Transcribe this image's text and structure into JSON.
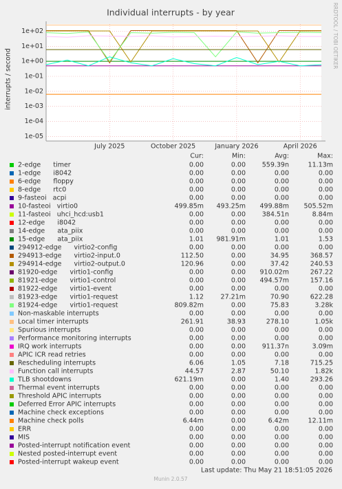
{
  "chart_data": {
    "type": "line",
    "title": "Individual interrupts - by year",
    "y_label": "interrupts / second",
    "log_scale": true,
    "grid": true,
    "xlim": [
      "2025-04",
      "2026-05"
    ],
    "xticks": [
      {
        "value": "2025-07",
        "label": "July 2025"
      },
      {
        "value": "2025-10",
        "label": "October 2025"
      },
      {
        "value": "2026-01",
        "label": "January 2026"
      },
      {
        "value": "2026-04",
        "label": "April 2026"
      }
    ],
    "ylim": [
      5e-06,
      300
    ],
    "yticks": [
      {
        "value": 100,
        "label": "1e+02"
      },
      {
        "value": 10,
        "label": "1e+01"
      },
      {
        "value": 1,
        "label": "1e+00"
      },
      {
        "value": 0.1,
        "label": "1e-01"
      },
      {
        "value": 0.01,
        "label": "1e-02"
      },
      {
        "value": 0.001,
        "label": "1e-03"
      },
      {
        "value": 0.0001,
        "label": "1e-04"
      },
      {
        "value": 1e-05,
        "label": "1e-05"
      }
    ],
    "x": [
      "2025-04",
      "2025-05",
      "2025-06",
      "2025-07",
      "2025-08",
      "2025-09",
      "2025-10",
      "2025-11",
      "2025-12",
      "2026-01",
      "2026-02",
      "2026-03",
      "2026-04",
      "2026-05"
    ],
    "column_headers": [
      "Cur:",
      "Min:",
      "Avg:",
      "Max:"
    ],
    "series": [
      {
        "name": "2-edge      timer",
        "color": "#00cc00",
        "stats": [
          "0.00",
          "0.00",
          "559.39n",
          "11.13m"
        ]
      },
      {
        "name": "1-edge      i8042",
        "color": "#0066b3",
        "stats": [
          "0.00",
          "0.00",
          "0.00",
          "0.00"
        ]
      },
      {
        "name": "6-edge      floppy",
        "color": "#ff8000",
        "stats": [
          "0.00",
          "0.00",
          "0.00",
          "0.00"
        ]
      },
      {
        "name": "8-edge      rtc0",
        "color": "#ffcc00",
        "stats": [
          "0.00",
          "0.00",
          "0.00",
          "0.00"
        ]
      },
      {
        "name": "9-fasteoi   acpi",
        "color": "#330099",
        "stats": [
          "0.00",
          "0.00",
          "0.00",
          "0.00"
        ]
      },
      {
        "name": "10-fasteoi   virtio0",
        "color": "#990099",
        "stats": [
          "499.85m",
          "493.25m",
          "499.88m",
          "505.52m"
        ],
        "values": [
          0.5,
          0.5,
          0.5,
          0.5,
          0.5,
          0.5,
          0.5,
          0.5,
          0.5,
          0.5,
          0.5,
          0.5,
          0.5,
          0.5
        ]
      },
      {
        "name": "11-fasteoi   uhci_hcd:usb1",
        "color": "#ccff00",
        "stats": [
          "0.00",
          "0.00",
          "384.51n",
          "8.84m"
        ]
      },
      {
        "name": "12-edge      i8042",
        "color": "#ff0000",
        "stats": [
          "0.00",
          "0.00",
          "0.00",
          "0.00"
        ]
      },
      {
        "name": "14-edge      ata_piix",
        "color": "#808080",
        "stats": [
          "0.00",
          "0.00",
          "0.00",
          "0.00"
        ]
      },
      {
        "name": "15-edge      ata_piix",
        "color": "#008f00",
        "stats": [
          "1.01",
          "981.91m",
          "1.01",
          "1.53"
        ],
        "values": [
          1.0,
          1.0,
          1.0,
          1.0,
          1.0,
          1.0,
          1.0,
          1.0,
          1.0,
          1.0,
          1.0,
          1.0,
          1.0,
          1.0
        ]
      },
      {
        "name": "294912-edge      virtio2-config",
        "color": "#00487d",
        "stats": [
          "0.00",
          "0.00",
          "0.00",
          "0.00"
        ]
      },
      {
        "name": "294913-edge      virtio2-input.0",
        "color": "#b35a00",
        "stats": [
          "112.50",
          "0.00",
          "34.95",
          "368.57"
        ],
        "values": [
          110,
          110,
          110,
          0.8,
          110,
          110,
          110,
          110,
          110,
          110,
          0.8,
          110,
          110,
          110
        ]
      },
      {
        "name": "294914-edge      virtio2-output.0",
        "color": "#b38f00",
        "stats": [
          "120.96",
          "0.00",
          "37.42",
          "240.53"
        ],
        "values": [
          105,
          105,
          105,
          105,
          0.9,
          105,
          105,
          105,
          105,
          105,
          105,
          0.9,
          105,
          105
        ]
      },
      {
        "name": "81920-edge      virtio1-config",
        "color": "#6b006b",
        "stats": [
          "0.00",
          "0.00",
          "910.02m",
          "267.22"
        ]
      },
      {
        "name": "81921-edge      virtio1-control",
        "color": "#8fb300",
        "stats": [
          "0.00",
          "0.00",
          "494.57m",
          "157.16"
        ]
      },
      {
        "name": "81922-edge      virtio1-event",
        "color": "#b30000",
        "stats": [
          "0.00",
          "0.00",
          "0.00",
          "0.00"
        ]
      },
      {
        "name": "81923-edge      virtio1-request",
        "color": "#bebebe",
        "stats": [
          "1.12",
          "27.21m",
          "70.90",
          "622.28"
        ]
      },
      {
        "name": "81924-edge      virtio1-request",
        "color": "#80ff80",
        "stats": [
          "809.82m",
          "0.00",
          "75.83",
          "3.28k"
        ],
        "values": [
          80,
          70,
          90,
          1,
          80,
          75,
          85,
          80,
          2,
          90,
          75,
          80,
          85,
          80
        ]
      },
      {
        "name": "Non-maskable interrupts",
        "color": "#80c9ff",
        "stats": [
          "0.00",
          "0.00",
          "0.00",
          "0.00"
        ]
      },
      {
        "name": "Local timer interrupts",
        "color": "#ffc080",
        "stats": [
          "261.91",
          "38.93",
          "278.10",
          "1.05k"
        ],
        "values": [
          260,
          260,
          260,
          260,
          260,
          260,
          260,
          260,
          260,
          260,
          260,
          260,
          260,
          260
        ]
      },
      {
        "name": "Spurious interrupts",
        "color": "#ffe680",
        "stats": [
          "0.00",
          "0.00",
          "0.00",
          "0.00"
        ]
      },
      {
        "name": "Performance monitoring interrupts",
        "color": "#aa80ff",
        "stats": [
          "0.00",
          "0.00",
          "0.00",
          "0.00"
        ]
      },
      {
        "name": "IRQ work interrupts",
        "color": "#ee00cc",
        "stats": [
          "0.00",
          "0.00",
          "911.37n",
          "3.09m"
        ]
      },
      {
        "name": "APIC ICR read retries",
        "color": "#ff8080",
        "stats": [
          "0.00",
          "0.00",
          "0.00",
          "0.00"
        ]
      },
      {
        "name": "Rescheduling interrupts",
        "color": "#666600",
        "stats": [
          "6.06",
          "1.05",
          "7.18",
          "715.25"
        ],
        "values": [
          6,
          6,
          6,
          6,
          6,
          6,
          6,
          6,
          6,
          6,
          6,
          6,
          6,
          6
        ]
      },
      {
        "name": "Function call interrupts",
        "color": "#ffbfff",
        "stats": [
          "44.57",
          "2.87",
          "50.10",
          "1.82k"
        ],
        "values": [
          45,
          40,
          50,
          48,
          45,
          50,
          42,
          45,
          47,
          44,
          46,
          50,
          45,
          45
        ]
      },
      {
        "name": "TLB shootdowns",
        "color": "#00ffcc",
        "stats": [
          "621.19m",
          "0.00",
          "1.40",
          "293.26"
        ],
        "values": [
          0.6,
          1.2,
          0.5,
          2,
          0.8,
          0.5,
          1.5,
          0.7,
          0.5,
          1.8,
          0.6,
          1,
          0.5,
          0.6
        ]
      },
      {
        "name": "Thermal event interrupts",
        "color": "#cc6699",
        "stats": [
          "0.00",
          "0.00",
          "0.00",
          "0.00"
        ]
      },
      {
        "name": "Threshold APIC interrupts",
        "color": "#999900",
        "stats": [
          "0.00",
          "0.00",
          "0.00",
          "0.00"
        ]
      },
      {
        "name": "Deferred Error APIC interrupts",
        "color": "#00cc00",
        "stats": [
          "0.00",
          "0.00",
          "0.00",
          "0.00"
        ]
      },
      {
        "name": "Machine check exceptions",
        "color": "#0066b3",
        "stats": [
          "0.00",
          "0.00",
          "0.00",
          "0.00"
        ]
      },
      {
        "name": "Machine check polls",
        "color": "#ff8000",
        "stats": [
          "6.44m",
          "0.00",
          "6.42m",
          "12.11m"
        ],
        "values": [
          0.0064,
          0.0064,
          0.0064,
          0.0064,
          0.0064,
          0.0064,
          0.0064,
          0.0064,
          0.0064,
          0.0064,
          0.0064,
          0.0064,
          0.0064,
          0.0064
        ]
      },
      {
        "name": "ERR",
        "color": "#ffcc00",
        "stats": [
          "0.00",
          "0.00",
          "0.00",
          "0.00"
        ]
      },
      {
        "name": "MIS",
        "color": "#330099",
        "stats": [
          "0.00",
          "0.00",
          "0.00",
          "0.00"
        ]
      },
      {
        "name": "Posted-interrupt notification event",
        "color": "#990099",
        "stats": [
          "0.00",
          "0.00",
          "0.00",
          "0.00"
        ]
      },
      {
        "name": "Nested posted-interrupt event",
        "color": "#ccff00",
        "stats": [
          "0.00",
          "0.00",
          "0.00",
          "0.00"
        ]
      },
      {
        "name": "Posted-interrupt wakeup event",
        "color": "#ff0000",
        "stats": [
          "0.00",
          "0.00",
          "0.00",
          "0.00"
        ]
      }
    ],
    "last_update": "Last update: Thu May 21 18:51:05 2026",
    "footer": "Munin 2.0.57",
    "watermark": "RRDTOOL / TOBI OETIKER"
  }
}
